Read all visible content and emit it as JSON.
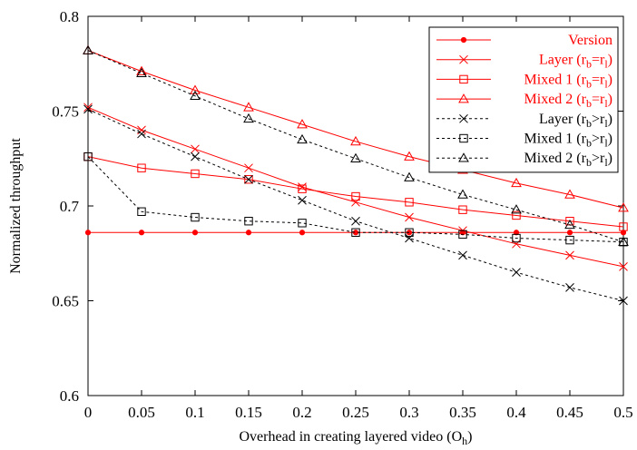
{
  "chart_data": {
    "type": "line",
    "xlabel": "Overhead in creating layered video (O",
    "xlabel_sub": "h",
    "xlabel_suffix": ")",
    "ylabel": "Normalized throughput",
    "xlim": [
      0,
      0.5
    ],
    "ylim": [
      0.6,
      0.8
    ],
    "x_ticks": [
      0,
      0.05,
      0.1,
      0.15,
      0.2,
      0.25,
      0.3,
      0.35,
      0.4,
      0.45,
      0.5
    ],
    "x_tick_labels": [
      "0",
      "0.05",
      "0.1",
      "0.15",
      "0.2",
      "0.25",
      "0.3",
      "0.35",
      "0.4",
      "0.45",
      "0.5"
    ],
    "y_ticks": [
      0.6,
      0.65,
      0.7,
      0.75,
      0.8
    ],
    "y_tick_labels": [
      "0.6",
      "0.65",
      "0.7",
      "0.75",
      "0.8"
    ],
    "grid": false,
    "legend_position": "top-right",
    "x": [
      0,
      0.05,
      0.1,
      0.15,
      0.2,
      0.25,
      0.3,
      0.35,
      0.4,
      0.45,
      0.5
    ],
    "series": [
      {
        "name": "Version",
        "legend_parts": [
          {
            "t": "Version"
          }
        ],
        "marker": "dot",
        "color": "#ff0000",
        "dash": "solid",
        "values": [
          0.686,
          0.686,
          0.686,
          0.686,
          0.686,
          0.686,
          0.686,
          0.686,
          0.686,
          0.686,
          0.686
        ]
      },
      {
        "name": "Layer (rb=rl)",
        "legend_parts": [
          {
            "t": "Layer (r"
          },
          {
            "t": "b",
            "sub": true
          },
          {
            "t": "=r"
          },
          {
            "t": "l",
            "sub": true
          },
          {
            "t": ")"
          }
        ],
        "marker": "x",
        "color": "#ff0000",
        "dash": "solid",
        "values": [
          0.752,
          0.74,
          0.73,
          0.72,
          0.71,
          0.702,
          0.694,
          0.687,
          0.68,
          0.674,
          0.668
        ]
      },
      {
        "name": "Mixed 1 (rb=rl)",
        "legend_parts": [
          {
            "t": "Mixed 1 (r"
          },
          {
            "t": "b",
            "sub": true
          },
          {
            "t": "=r"
          },
          {
            "t": "l",
            "sub": true
          },
          {
            "t": ")"
          }
        ],
        "marker": "square",
        "color": "#ff0000",
        "dash": "solid",
        "values": [
          0.726,
          0.72,
          0.717,
          0.714,
          0.709,
          0.705,
          0.702,
          0.698,
          0.695,
          0.692,
          0.689
        ]
      },
      {
        "name": "Mixed 2 (rb=rl)",
        "legend_parts": [
          {
            "t": "Mixed 2 (r"
          },
          {
            "t": "b",
            "sub": true
          },
          {
            "t": "=r"
          },
          {
            "t": "l",
            "sub": true
          },
          {
            "t": ")"
          }
        ],
        "marker": "triangle",
        "color": "#ff0000",
        "dash": "solid",
        "values": [
          0.782,
          0.771,
          0.761,
          0.752,
          0.743,
          0.734,
          0.726,
          0.719,
          0.712,
          0.706,
          0.699
        ]
      },
      {
        "name": "Layer (rb>rl)",
        "legend_parts": [
          {
            "t": "Layer (r"
          },
          {
            "t": "b",
            "sub": true
          },
          {
            "t": ">r"
          },
          {
            "t": "l",
            "sub": true
          },
          {
            "t": ")"
          }
        ],
        "marker": "x",
        "color": "#000000",
        "dash": "dashed",
        "values": [
          0.751,
          0.738,
          0.726,
          0.714,
          0.703,
          0.692,
          0.683,
          0.674,
          0.665,
          0.657,
          0.65
        ]
      },
      {
        "name": "Mixed 1 (rb>rl)",
        "legend_parts": [
          {
            "t": "Mixed 1 (r"
          },
          {
            "t": "b",
            "sub": true
          },
          {
            "t": ">r"
          },
          {
            "t": "l",
            "sub": true
          },
          {
            "t": ")"
          }
        ],
        "marker": "square",
        "color": "#000000",
        "dash": "dashed",
        "values": [
          0.726,
          0.697,
          0.694,
          0.692,
          0.691,
          0.686,
          0.686,
          0.685,
          0.683,
          0.682,
          0.681
        ]
      },
      {
        "name": "Mixed 2 (rb>rl)",
        "legend_parts": [
          {
            "t": "Mixed 2 (r"
          },
          {
            "t": "b",
            "sub": true
          },
          {
            "t": ">r"
          },
          {
            "t": "l",
            "sub": true
          },
          {
            "t": ")"
          }
        ],
        "marker": "triangle",
        "color": "#000000",
        "dash": "dashed",
        "values": [
          0.782,
          0.77,
          0.758,
          0.746,
          0.735,
          0.725,
          0.715,
          0.706,
          0.698,
          0.69,
          0.681
        ]
      }
    ]
  }
}
